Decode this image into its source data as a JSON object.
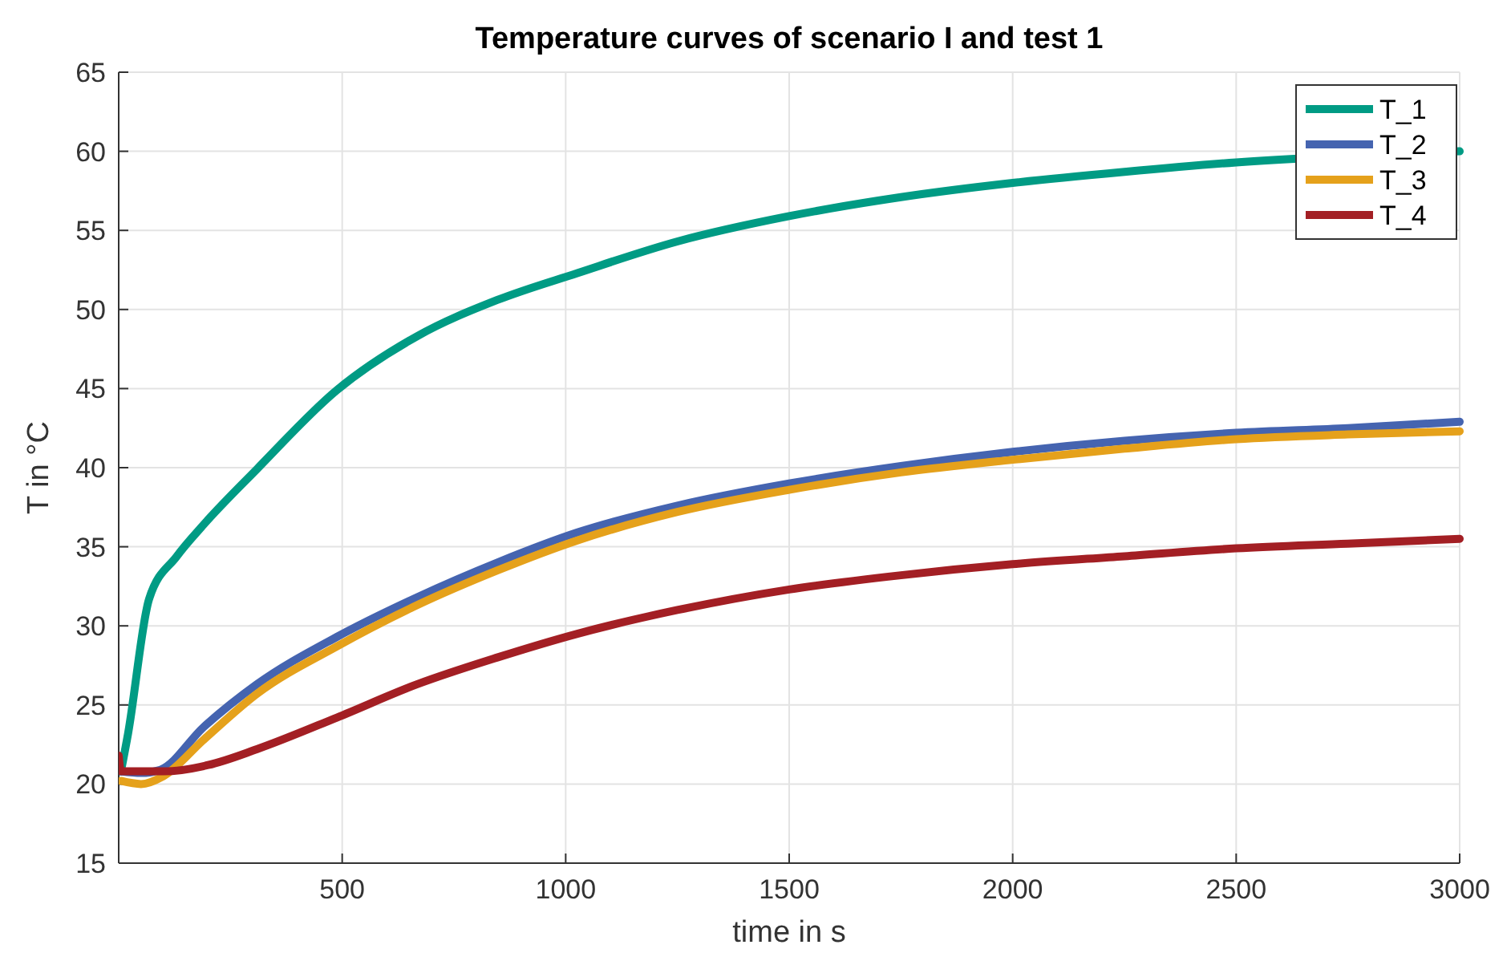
{
  "chart_data": {
    "type": "line",
    "title": "Temperature curves of scenario I and test 1",
    "xlabel": "time in s",
    "ylabel": "T in °C",
    "xlim": [
      0,
      3000
    ],
    "ylim": [
      15,
      65
    ],
    "xticks": [
      500,
      1000,
      1500,
      2000,
      2500,
      3000
    ],
    "yticks": [
      15,
      20,
      25,
      30,
      35,
      40,
      45,
      50,
      55,
      60,
      65
    ],
    "grid": true,
    "legend": "top right",
    "marker": "none",
    "line_style": "solid",
    "series": [
      {
        "name": "T_1",
        "color": "#009b84",
        "x": [
          5,
          21,
          68,
          130,
          190,
          309,
          488,
          667,
          847,
          1026,
          1250,
          1500,
          1750,
          2000,
          2250,
          2500,
          3000
        ],
        "values": [
          20.8,
          23.2,
          31.7,
          34.4,
          36.4,
          39.9,
          44.9,
          48.3,
          50.6,
          52.3,
          54.3,
          55.9,
          57.1,
          58.0,
          58.7,
          59.3,
          60.0
        ]
      },
      {
        "name": "T_2",
        "color": "#4564b0",
        "x": [
          5,
          50,
          93,
          190,
          309,
          488,
          667,
          847,
          1026,
          1250,
          1500,
          1750,
          2000,
          2250,
          2500,
          2750,
          3000
        ],
        "values": [
          20.8,
          20.7,
          20.9,
          23.6,
          26.3,
          29.3,
          31.8,
          34.0,
          35.9,
          37.6,
          39.0,
          40.1,
          41.0,
          41.7,
          42.2,
          42.5,
          42.9
        ]
      },
      {
        "name": "T_3",
        "color": "#e5a11b",
        "x": [
          5,
          50,
          100,
          190,
          309,
          488,
          667,
          847,
          1026,
          1250,
          1500,
          1750,
          2000,
          2250,
          2500,
          2750,
          3000
        ],
        "values": [
          20.2,
          20.0,
          20.5,
          22.8,
          25.7,
          28.7,
          31.3,
          33.5,
          35.4,
          37.2,
          38.6,
          39.7,
          40.5,
          41.2,
          41.8,
          42.1,
          42.3
        ]
      },
      {
        "name": "T_4",
        "color": "#a31f24",
        "x": [
          0,
          5,
          30,
          100,
          200,
          309,
          488,
          667,
          847,
          1026,
          1250,
          1500,
          1750,
          2000,
          2250,
          2500,
          2750,
          3000
        ],
        "values": [
          21.8,
          20.8,
          20.8,
          20.8,
          21.2,
          22.2,
          24.2,
          26.3,
          28.0,
          29.5,
          31.0,
          32.3,
          33.2,
          33.9,
          34.4,
          34.9,
          35.2,
          35.5
        ]
      }
    ]
  }
}
